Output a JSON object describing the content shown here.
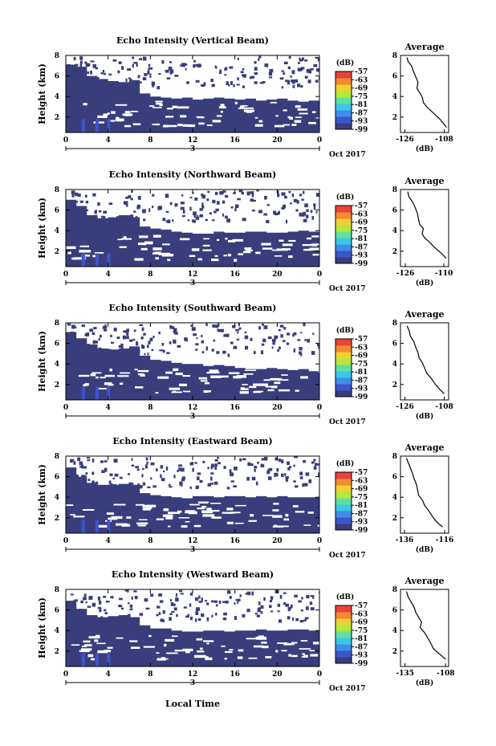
{
  "x_axis_label": "Local Time",
  "x_ticks": [
    "0",
    "4",
    "8",
    "12",
    "16",
    "20",
    "0"
  ],
  "date_center": "3",
  "date_right": "Oct 2017",
  "colorbar_unit": "(dB)",
  "colorbar_ticks": [
    "-57",
    "-63",
    "-69",
    "-75",
    "-81",
    "-87",
    "-93",
    "-99"
  ],
  "colorbar_colors": [
    "#3a3d7c",
    "#3d55c8",
    "#3f8de8",
    "#3cc6e8",
    "#5fe0a0",
    "#b4e83c",
    "#f0d034",
    "#f28a30",
    "#e8453a"
  ],
  "echo_color": "#3a3d7c",
  "mean_unit": "(dB)",
  "chart_data": [
    {
      "type": "heatmap",
      "title": "Echo Intensity (Vertical Beam)",
      "ylabel": "Height (km)",
      "y_ticks": [
        "2",
        "4",
        "6",
        "8"
      ],
      "xlim": [
        0,
        24
      ],
      "ylim": [
        0.5,
        8
      ],
      "echo_top_km": [
        7.1,
        6.9,
        6.0,
        5.7,
        5.5,
        5.4,
        5.6,
        4.3,
        4.0,
        3.9,
        3.8,
        3.9,
        3.7,
        3.8,
        3.9,
        3.8,
        3.7,
        3.8,
        3.6,
        3.7,
        3.8,
        3.6,
        3.5,
        3.6
      ],
      "profile": {
        "title": "Average",
        "x_ticks": [
          "-126",
          "-108"
        ],
        "xlim": [
          -128,
          -106
        ],
        "ylim": [
          0.5,
          8
        ],
        "y_ticks": [
          "2",
          "4",
          "6",
          "8"
        ],
        "x": [
          -125,
          -124.5,
          -123,
          -122,
          -121,
          -120,
          -120.5,
          -119,
          -118,
          -117.5,
          -116,
          -113,
          -110,
          -107
        ],
        "y": [
          7.8,
          7.4,
          7.0,
          6.4,
          5.9,
          5.4,
          4.8,
          4.3,
          3.9,
          3.4,
          3.0,
          2.4,
          1.8,
          1.0
        ]
      }
    },
    {
      "type": "heatmap",
      "title": "Echo Intensity (Northward Beam)",
      "ylabel": "Height (km)",
      "y_ticks": [
        "2",
        "4",
        "6",
        "8"
      ],
      "xlim": [
        0,
        24
      ],
      "ylim": [
        0.5,
        8
      ],
      "echo_top_km": [
        7.0,
        6.4,
        5.5,
        5.2,
        5.3,
        5.5,
        5.3,
        4.4,
        4.2,
        4.1,
        3.9,
        3.8,
        3.7,
        3.7,
        3.9,
        3.8,
        3.8,
        3.9,
        3.9,
        3.8,
        3.8,
        3.9,
        4.0,
        3.9
      ],
      "profile": {
        "title": "Average",
        "x_ticks": [
          "-126",
          "-110"
        ],
        "xlim": [
          -128,
          -108
        ],
        "ylim": [
          0.5,
          8
        ],
        "y_ticks": [
          "2",
          "4",
          "6",
          "8"
        ],
        "x": [
          -125,
          -124.5,
          -123,
          -122,
          -121,
          -120.5,
          -120,
          -118.5,
          -119,
          -118,
          -116,
          -114,
          -111,
          -109
        ],
        "y": [
          7.8,
          7.3,
          6.8,
          6.3,
          5.7,
          5.1,
          4.6,
          4.2,
          3.7,
          3.3,
          2.9,
          2.4,
          1.8,
          1.3
        ]
      }
    },
    {
      "type": "heatmap",
      "title": "Echo Intensity (Southward Beam)",
      "ylabel": "Height (km)",
      "y_ticks": [
        "2",
        "4",
        "6",
        "8"
      ],
      "xlim": [
        0,
        24
      ],
      "ylim": [
        0.5,
        8
      ],
      "echo_top_km": [
        7.1,
        6.5,
        5.9,
        5.5,
        5.4,
        5.5,
        5.7,
        4.8,
        4.4,
        4.3,
        4.1,
        4.0,
        4.0,
        3.8,
        3.9,
        3.8,
        3.6,
        3.5,
        3.5,
        3.6,
        3.5,
        3.4,
        3.5,
        3.3
      ],
      "profile": {
        "title": "Average",
        "x_ticks": [
          "-126",
          "-108"
        ],
        "xlim": [
          -128,
          -106
        ],
        "ylim": [
          0.5,
          8
        ],
        "y_ticks": [
          "2",
          "4",
          "6",
          "8"
        ],
        "x": [
          -125,
          -124,
          -123.5,
          -122,
          -121,
          -120,
          -119.5,
          -118,
          -117,
          -116,
          -114,
          -112,
          -110,
          -108
        ],
        "y": [
          7.7,
          7.2,
          6.7,
          6.2,
          5.6,
          5.1,
          4.6,
          4.1,
          3.6,
          3.1,
          2.6,
          2.0,
          1.5,
          1.1
        ]
      }
    },
    {
      "type": "heatmap",
      "title": "Echo Intensity (Eastward Beam)",
      "ylabel": "Height (km)",
      "y_ticks": [
        "2",
        "4",
        "6",
        "8"
      ],
      "xlim": [
        0,
        24
      ],
      "ylim": [
        0.5,
        8
      ],
      "echo_top_km": [
        6.9,
        6.0,
        5.4,
        5.2,
        5.2,
        5.3,
        5.2,
        4.4,
        4.2,
        4.1,
        4.0,
        3.9,
        4.1,
        4.1,
        4.0,
        4.1,
        4.1,
        4.0,
        4.1,
        4.0,
        4.1,
        4.0,
        4.0,
        4.0
      ],
      "profile": {
        "title": "Average",
        "x_ticks": [
          "-136",
          "-116"
        ],
        "xlim": [
          -138,
          -114
        ],
        "ylim": [
          0.5,
          8
        ],
        "y_ticks": [
          "2",
          "4",
          "6",
          "8"
        ],
        "x": [
          -135,
          -134,
          -133,
          -132,
          -131,
          -130,
          -129.5,
          -129,
          -127,
          -126,
          -124,
          -122,
          -120,
          -117
        ],
        "y": [
          7.8,
          7.3,
          6.8,
          6.3,
          5.7,
          5.2,
          4.7,
          4.2,
          3.7,
          3.2,
          2.7,
          2.1,
          1.6,
          1.1
        ]
      }
    },
    {
      "type": "heatmap",
      "title": "Echo Intensity (Westward Beam)",
      "ylabel": "Height (km)",
      "y_ticks": [
        "2",
        "4",
        "6",
        "8"
      ],
      "xlim": [
        0,
        24
      ],
      "ylim": [
        0.5,
        8
      ],
      "echo_top_km": [
        6.9,
        6.1,
        5.5,
        5.3,
        5.4,
        5.5,
        5.3,
        4.5,
        4.2,
        4.2,
        4.0,
        3.9,
        3.9,
        4.0,
        4.0,
        3.9,
        4.0,
        4.0,
        4.1,
        4.0,
        4.0,
        4.1,
        4.1,
        4.0
      ],
      "profile": {
        "title": "Average",
        "x_ticks": [
          "-135",
          "-108"
        ],
        "xlim": [
          -138,
          -106
        ],
        "ylim": [
          0.5,
          8
        ],
        "y_ticks": [
          "2",
          "4",
          "6",
          "8"
        ],
        "x": [
          -134,
          -133,
          -131,
          -129,
          -128,
          -126,
          -124,
          -125,
          -122,
          -120,
          -118,
          -116,
          -112,
          -108
        ],
        "y": [
          7.8,
          7.3,
          6.8,
          6.3,
          5.8,
          5.3,
          4.8,
          4.3,
          3.8,
          3.3,
          2.8,
          2.2,
          1.7,
          1.2
        ]
      }
    }
  ]
}
